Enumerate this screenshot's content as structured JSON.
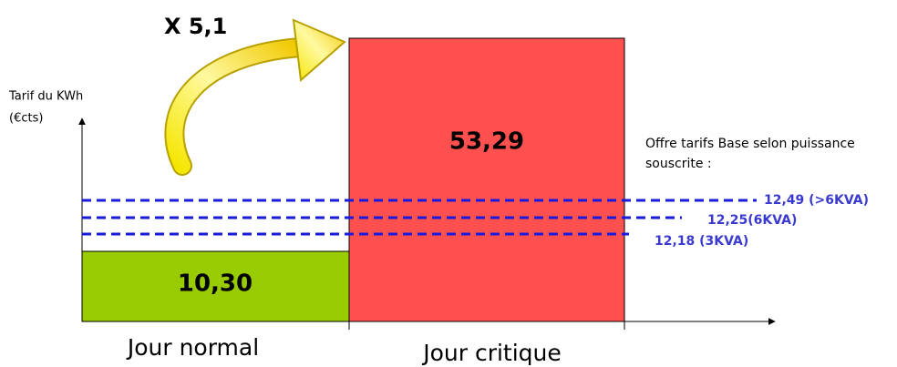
{
  "title": "X 5,1",
  "axis_label": {
    "line1": "Tarif du KWh",
    "line2": "(€cts)"
  },
  "bars": [
    {
      "label": "Jour normal",
      "value": "10,30"
    },
    {
      "label": "Jour critique",
      "value": "53,29"
    }
  ],
  "reference_caption": {
    "line1": "Offre tarifs Base selon puissance",
    "line2": "souscrite :"
  },
  "reference_lines": [
    "12,49 (>6KVA)",
    "12,25(6KVA)",
    "12,18 (3KVA)"
  ]
}
